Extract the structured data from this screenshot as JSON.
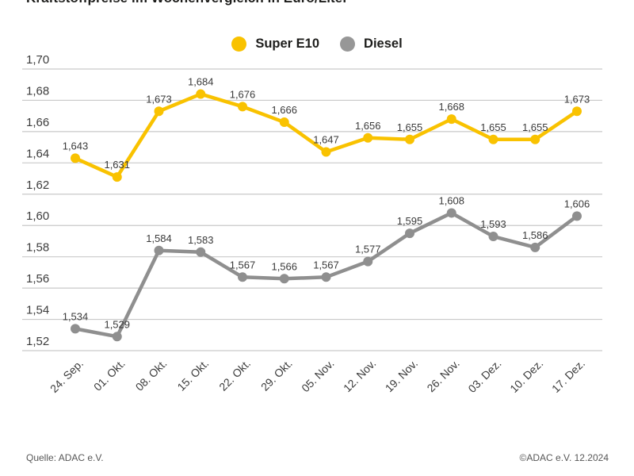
{
  "title": "Kraftstoffpreise im Wochenvergleich in Euro/Liter",
  "legend": {
    "items": [
      {
        "label": "Super E10",
        "color": "#F9C200"
      },
      {
        "label": "Diesel",
        "color": "#979797"
      }
    ]
  },
  "footer": {
    "source_left": "Quelle: ADAC e.V.",
    "source_right": "©ADAC e.V. 12.2024"
  },
  "colors": {
    "grid": "#c9c9c9",
    "axis_text": "#3c3c3c",
    "value_label_text": "#3a3a3a",
    "background": "#ffffff"
  },
  "chart_data": {
    "type": "line",
    "title": "Kraftstoffpreise im Wochenvergleich in Euro/Liter",
    "categories": [
      "24. Sep.",
      "01. Okt.",
      "08. Okt.",
      "15. Okt.",
      "22. Okt.",
      "29. Okt.",
      "05. Nov.",
      "12. Nov.",
      "19. Nov.",
      "26. Nov.",
      "03. Dez.",
      "10. Dez.",
      "17. Dez."
    ],
    "series": [
      {
        "name": "Super E10",
        "color": "#F9C200",
        "values": [
          1.643,
          1.631,
          1.673,
          1.684,
          1.676,
          1.666,
          1.647,
          1.656,
          1.655,
          1.668,
          1.655,
          1.655,
          1.673
        ]
      },
      {
        "name": "Diesel",
        "color": "#8F8F8F",
        "values": [
          1.534,
          1.529,
          1.584,
          1.583,
          1.567,
          1.566,
          1.567,
          1.577,
          1.595,
          1.608,
          1.593,
          1.586,
          1.606
        ]
      }
    ],
    "xlabel": "",
    "ylabel": "Euro/Liter",
    "ylim": [
      1.52,
      1.7
    ],
    "y_ticks": [
      1.7,
      1.68,
      1.66,
      1.64,
      1.62,
      1.6,
      1.58,
      1.56,
      1.54,
      1.52
    ],
    "grid": true,
    "legend_position": "top",
    "decimal_separator": ",",
    "value_labels_shown": true
  }
}
